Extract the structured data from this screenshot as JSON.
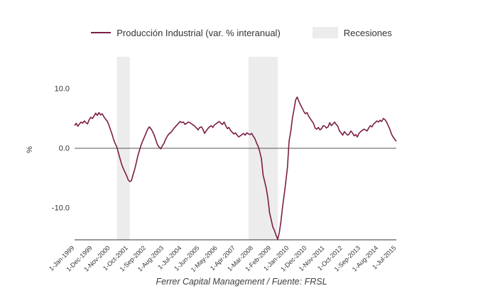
{
  "legend": {
    "series_label": "Producción Industrial (var. % interanual)",
    "recessions_label": "Recesiones"
  },
  "y_axis": {
    "label": "%",
    "ticks": [
      "10.0",
      "0.0",
      "-10.0"
    ]
  },
  "footer": {
    "caption": "Ferrer Capital Management / Fuente: FRSL"
  },
  "colors": {
    "line": "#7c1d45",
    "recession": "#ececec",
    "zero_axis": "#555555",
    "bottom_axis": "#333333",
    "text": "#333333"
  },
  "chart_data": {
    "type": "line",
    "title": "",
    "series_name": "Producción Industrial (var. % interanual)",
    "ylabel": "%",
    "ylim": [
      -15.5,
      14.9
    ],
    "y_ticks": [
      10.0,
      0.0,
      -10.0
    ],
    "x_range": [
      "1999-01",
      "2015-07"
    ],
    "x_tick_labels": [
      "1-Jan-1999",
      "1-Dec-1999",
      "1-Nov-2000",
      "1-Oct-2001",
      "1-Sep-2002",
      "1-Aug-2003",
      "1-Jul-2004",
      "1-Jun-2005",
      "1-May-2006",
      "1-Apr-2007",
      "1-Mar-2008",
      "1-Feb-2009",
      "1-Jan-2010",
      "1-Dec-2010",
      "1-Nov-2011",
      "1-Oct-2012",
      "1-Sep-2013",
      "1-Aug-2014",
      "1-Jul-2015"
    ],
    "x_tick_indices": [
      0,
      11,
      22,
      33,
      44,
      55,
      66,
      77,
      88,
      99,
      110,
      121,
      132,
      143,
      154,
      165,
      176,
      187,
      198
    ],
    "values": [
      3.8,
      4.2,
      3.7,
      4.1,
      4.4,
      4.2,
      4.6,
      4.3,
      4.1,
      4.8,
      5.2,
      5.0,
      5.4,
      5.9,
      5.5,
      6.0,
      5.6,
      5.8,
      5.3,
      4.9,
      4.6,
      4.0,
      3.2,
      2.4,
      1.5,
      0.8,
      0.2,
      -0.8,
      -1.8,
      -2.7,
      -3.4,
      -4.0,
      -4.6,
      -5.3,
      -5.6,
      -5.4,
      -4.4,
      -3.5,
      -2.4,
      -1.2,
      -0.3,
      0.6,
      1.3,
      1.9,
      2.6,
      3.2,
      3.6,
      3.3,
      2.8,
      2.2,
      1.4,
      0.6,
      0.2,
      -0.1,
      0.4,
      0.8,
      1.5,
      2.0,
      2.4,
      2.6,
      2.9,
      3.3,
      3.6,
      3.9,
      4.2,
      4.5,
      4.3,
      4.4,
      4.0,
      4.2,
      4.4,
      4.3,
      4.1,
      3.9,
      3.7,
      3.4,
      3.1,
      3.5,
      3.6,
      3.2,
      2.5,
      2.9,
      3.3,
      3.6,
      3.8,
      3.5,
      3.9,
      4.1,
      4.3,
      4.5,
      4.2,
      4.0,
      4.4,
      3.8,
      3.3,
      3.5,
      3.0,
      2.7,
      2.4,
      2.6,
      2.2,
      1.9,
      2.1,
      2.3,
      2.5,
      2.2,
      2.6,
      2.4,
      2.3,
      2.5,
      2.0,
      1.6,
      0.9,
      0.3,
      -0.6,
      -1.8,
      -4.5,
      -5.6,
      -6.8,
      -8.5,
      -10.8,
      -12.0,
      -13.2,
      -13.8,
      -14.6,
      -15.3,
      -14.1,
      -12.2,
      -9.8,
      -7.8,
      -5.6,
      -3.2,
      1.2,
      2.8,
      5.0,
      6.5,
      8.1,
      8.6,
      7.9,
      7.3,
      6.8,
      6.2,
      5.8,
      6.0,
      5.4,
      5.0,
      4.6,
      4.2,
      3.4,
      3.2,
      3.5,
      3.1,
      3.3,
      3.8,
      3.7,
      3.4,
      3.6,
      4.3,
      3.8,
      4.1,
      4.4,
      4.0,
      3.7,
      2.9,
      2.6,
      2.2,
      2.8,
      2.5,
      2.2,
      2.4,
      2.9,
      2.6,
      2.1,
      2.3,
      1.9,
      2.5,
      2.8,
      3.0,
      3.2,
      3.1,
      2.9,
      3.4,
      3.8,
      3.6,
      4.1,
      4.3,
      4.6,
      4.4,
      4.7,
      4.5,
      5.0,
      4.8,
      4.4,
      3.8,
      3.2,
      2.4,
      1.9,
      1.5,
      1.2
    ],
    "recessions": [
      {
        "start": "2001-03",
        "end": "2001-11",
        "start_index": 26,
        "end_index": 34
      },
      {
        "start": "2007-12",
        "end": "2009-06",
        "start_index": 107,
        "end_index": 125
      }
    ],
    "legend_position": "top",
    "grid": false
  }
}
